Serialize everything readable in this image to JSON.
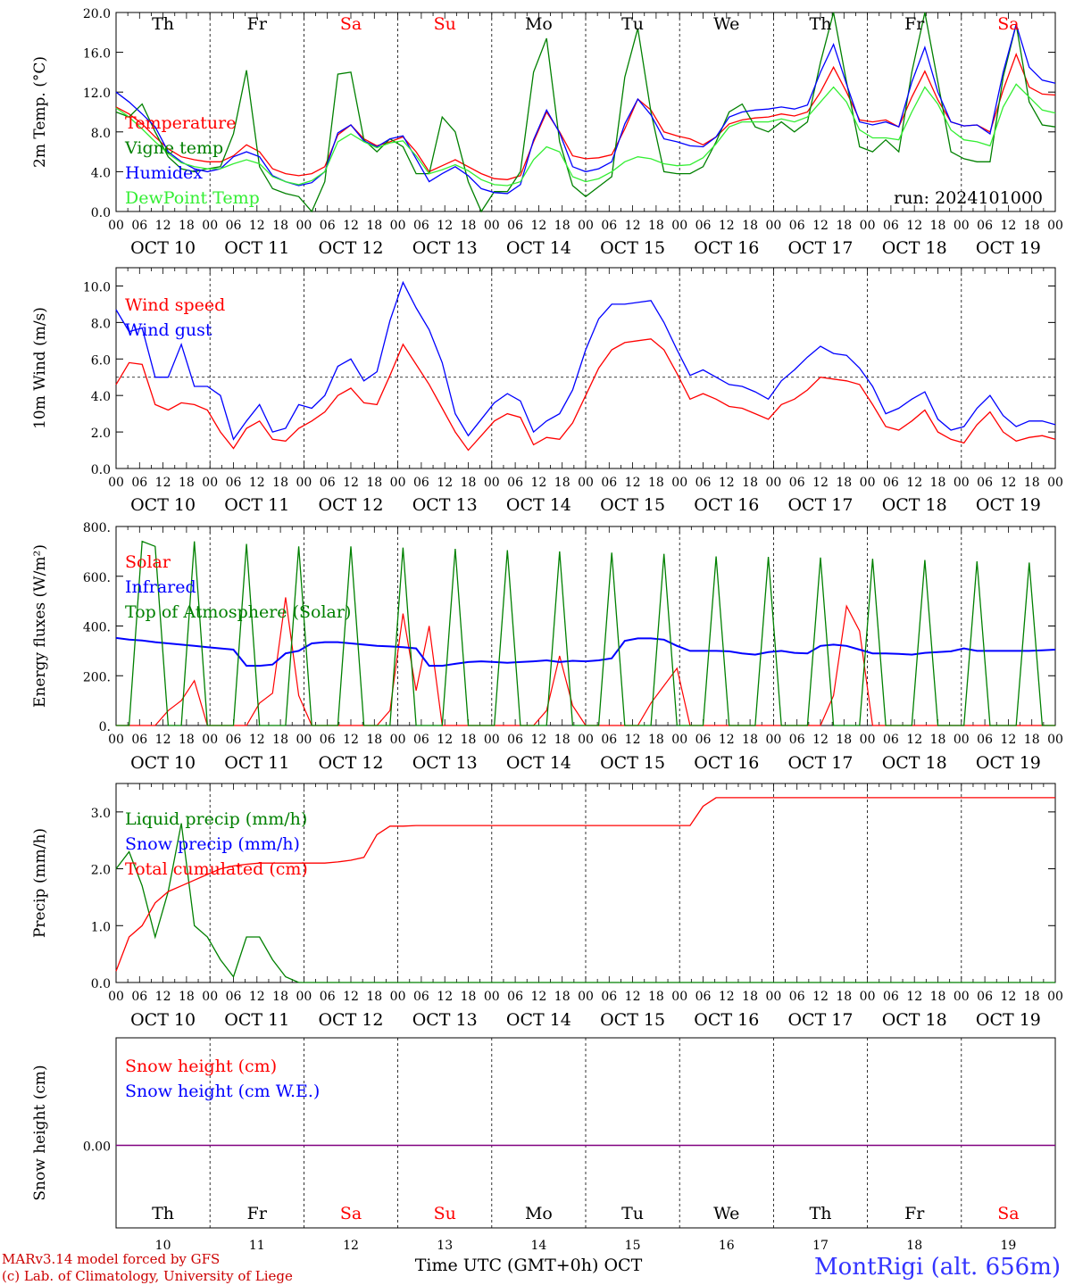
{
  "days": [
    "Th",
    "Fr",
    "Sa",
    "Su",
    "Mo",
    "Tu",
    "We",
    "Th",
    "Fr",
    "Sa"
  ],
  "weekend_days": [
    "Sa",
    "Su"
  ],
  "dates": [
    "OCT 10",
    "OCT 11",
    "OCT 12",
    "OCT 13",
    "OCT 14",
    "OCT 15",
    "OCT 16",
    "OCT 17",
    "OCT 18",
    "OCT 19"
  ],
  "day_numbers": [
    "10",
    "11",
    "12",
    "13",
    "14",
    "15",
    "16",
    "17",
    "18",
    "19"
  ],
  "hour_ticks": [
    "00",
    "06",
    "12",
    "18"
  ],
  "run_label": "run: 2024101000",
  "footer": {
    "model": "MARv3.14 model forced by GFS",
    "lab": "(c) Lab. of Climatology, University of Liege",
    "axis": "Time UTC (GMT+0h) OCT",
    "station": "MontRigi (alt. 656m)"
  },
  "colors": {
    "red": "#ff0000",
    "green": "#008000",
    "blue": "#0000ff",
    "lightgreen": "#33ee33",
    "purple": "#800080"
  },
  "chart_data": [
    {
      "type": "line",
      "ylabel": "2m Temp. (°C)",
      "ylim": [
        0,
        20
      ],
      "yticks": [
        "0.0",
        "4.0",
        "8.0",
        "12.0",
        "16.0",
        "20.0"
      ],
      "x_unit": "hours since OCT 10 00 UTC, 3-hourly",
      "series": [
        {
          "name": "Temperature",
          "color": "red",
          "values": [
            10.5,
            9.8,
            8.8,
            7.5,
            6.3,
            5.5,
            5.2,
            5.0,
            5.0,
            5.6,
            6.7,
            6.0,
            4.3,
            3.8,
            3.6,
            3.8,
            4.5,
            7.7,
            8.7,
            7.3,
            6.6,
            7.0,
            7.5,
            6.0,
            4.0,
            4.6,
            5.2,
            4.5,
            3.8,
            3.3,
            3.2,
            3.6,
            7.0,
            10.0,
            8.0,
            5.6,
            5.3,
            5.4,
            5.7,
            8.3,
            11.3,
            10.2,
            8.0,
            7.6,
            7.3,
            6.7,
            7.5,
            8.8,
            9.2,
            9.4,
            9.5,
            9.8,
            9.6,
            10.0,
            12.0,
            14.5,
            12.0,
            9.2,
            9.0,
            9.2,
            8.5,
            11.5,
            14.1,
            11.2,
            9.0,
            8.6,
            8.7,
            8.0,
            12.2,
            15.8,
            12.5,
            11.8,
            11.7
          ]
        },
        {
          "name": "Vigne temp",
          "color": "green",
          "values": [
            10.0,
            9.5,
            10.8,
            8.0,
            5.5,
            4.3,
            4.0,
            4.3,
            4.5,
            7.8,
            14.2,
            4.5,
            2.3,
            1.8,
            1.5,
            0.0,
            3.0,
            13.8,
            14.0,
            7.2,
            6.0,
            7.3,
            6.5,
            3.8,
            3.8,
            9.5,
            8.0,
            3.0,
            0.0,
            2.0,
            2.0,
            4.0,
            14.0,
            17.4,
            7.0,
            2.6,
            1.5,
            2.5,
            3.5,
            13.5,
            18.4,
            10.0,
            4.0,
            3.8,
            3.8,
            4.5,
            7.0,
            10.0,
            10.8,
            8.5,
            8.0,
            9.0,
            8.0,
            9.0,
            15.0,
            20.0,
            13.0,
            6.5,
            6.0,
            7.2,
            6.0,
            14.0,
            20.0,
            13.0,
            6.0,
            5.3,
            5.0,
            5.0,
            13.5,
            18.8,
            11.0,
            8.7,
            8.5
          ]
        },
        {
          "name": "Humidex",
          "color": "blue",
          "values": [
            12.0,
            11.0,
            9.8,
            8.5,
            6.0,
            5.0,
            4.3,
            4.0,
            4.3,
            5.5,
            6.0,
            5.5,
            3.6,
            3.0,
            2.6,
            2.9,
            4.0,
            7.9,
            8.7,
            7.1,
            6.5,
            7.3,
            7.6,
            5.3,
            3.0,
            3.8,
            4.5,
            3.6,
            2.3,
            1.9,
            1.8,
            2.7,
            7.2,
            10.2,
            7.9,
            4.5,
            4.0,
            4.3,
            5.0,
            8.8,
            11.3,
            9.7,
            7.3,
            7.0,
            6.6,
            6.5,
            7.5,
            9.5,
            10.0,
            10.2,
            10.3,
            10.5,
            10.3,
            10.7,
            14.0,
            16.8,
            12.8,
            9.0,
            8.7,
            9.0,
            8.5,
            13.0,
            16.5,
            12.0,
            9.0,
            8.6,
            8.7,
            7.8,
            14.0,
            18.8,
            14.5,
            13.2,
            12.9
          ]
        },
        {
          "name": "DewPoint Temp",
          "color": "lightgreen",
          "values": [
            10.4,
            9.5,
            8.3,
            7.0,
            5.8,
            4.9,
            4.5,
            4.3,
            4.3,
            4.8,
            5.2,
            4.8,
            3.5,
            3.0,
            2.7,
            3.1,
            4.0,
            7.0,
            7.8,
            7.0,
            6.4,
            6.9,
            7.1,
            5.6,
            3.8,
            4.2,
            4.7,
            4.1,
            3.2,
            2.7,
            2.6,
            3.0,
            5.2,
            6.5,
            6.0,
            3.5,
            3.0,
            3.3,
            4.0,
            5.0,
            5.5,
            5.3,
            4.8,
            4.6,
            4.7,
            5.4,
            6.8,
            8.5,
            9.0,
            9.0,
            9.0,
            9.3,
            9.0,
            9.5,
            11.0,
            12.5,
            11.0,
            8.2,
            7.4,
            7.4,
            7.2,
            10.0,
            12.5,
            10.8,
            8.2,
            7.2,
            7.0,
            6.6,
            10.5,
            12.8,
            11.5,
            10.2,
            9.9
          ]
        }
      ]
    },
    {
      "type": "line",
      "ylabel": "10m Wind (m/s)",
      "ylim": [
        0,
        11
      ],
      "yticks": [
        "0.0",
        "2.0",
        "4.0",
        "6.0",
        "8.0",
        "10.0"
      ],
      "reference_line": 5.0,
      "series": [
        {
          "name": "Wind speed",
          "color": "red",
          "values": [
            4.6,
            5.8,
            5.7,
            3.5,
            3.2,
            3.6,
            3.5,
            3.2,
            2.0,
            1.1,
            2.2,
            2.6,
            1.6,
            1.5,
            2.2,
            2.6,
            3.1,
            4.0,
            4.4,
            3.6,
            3.5,
            5.1,
            6.8,
            5.7,
            4.6,
            3.3,
            2.0,
            1.0,
            1.8,
            2.6,
            3.0,
            2.8,
            1.3,
            1.7,
            1.6,
            2.5,
            4.0,
            5.5,
            6.5,
            6.9,
            7.0,
            7.1,
            6.5,
            5.2,
            3.8,
            4.1,
            3.8,
            3.4,
            3.3,
            3.0,
            2.7,
            3.5,
            3.8,
            4.3,
            5.0,
            4.9,
            4.8,
            4.6,
            3.5,
            2.3,
            2.1,
            2.6,
            3.2,
            2.0,
            1.6,
            1.4,
            2.4,
            3.1,
            2.0,
            1.5,
            1.7,
            1.8,
            1.6
          ]
        },
        {
          "name": "Wind gust",
          "color": "blue",
          "values": [
            8.7,
            7.5,
            7.7,
            5.0,
            5.0,
            6.8,
            4.5,
            4.5,
            4.0,
            1.6,
            2.6,
            3.5,
            2.0,
            2.2,
            3.5,
            3.3,
            4.0,
            5.6,
            6.0,
            4.8,
            5.3,
            8.1,
            10.2,
            8.8,
            7.6,
            5.8,
            3.0,
            1.8,
            2.7,
            3.6,
            4.1,
            3.7,
            2.0,
            2.6,
            3.0,
            4.3,
            6.5,
            8.2,
            9.0,
            9.0,
            9.1,
            9.2,
            8.0,
            6.5,
            5.1,
            5.4,
            5.0,
            4.6,
            4.5,
            4.2,
            3.8,
            4.8,
            5.4,
            6.1,
            6.7,
            6.3,
            6.2,
            5.5,
            4.5,
            3.0,
            3.3,
            3.8,
            4.2,
            2.7,
            2.1,
            2.3,
            3.3,
            4.0,
            2.9,
            2.3,
            2.6,
            2.6,
            2.4
          ]
        }
      ]
    },
    {
      "type": "line",
      "ylabel": "Energy fluxes (W/m²)",
      "ylim": [
        0,
        800
      ],
      "yticks": [
        "0.",
        "200.",
        "400.",
        "600.",
        "800."
      ],
      "series": [
        {
          "name": "Solar",
          "color": "red",
          "values": [
            0,
            0,
            0,
            0,
            60,
            100,
            180,
            0,
            0,
            0,
            0,
            90,
            130,
            515,
            120,
            0,
            0,
            0,
            0,
            0,
            0,
            60,
            450,
            140,
            400,
            0,
            0,
            0,
            0,
            0,
            0,
            0,
            0,
            60,
            280,
            80,
            0,
            0,
            0,
            0,
            0,
            90,
            160,
            230,
            0,
            0,
            0,
            0,
            0,
            0,
            0,
            0,
            0,
            0,
            0,
            120,
            480,
            380,
            0,
            0,
            0,
            0,
            0,
            0,
            0,
            0,
            0,
            0,
            0,
            0,
            0,
            0,
            0
          ]
        },
        {
          "name": "Infrared",
          "color": "blue",
          "values": [
            352,
            345,
            342,
            335,
            330,
            325,
            320,
            315,
            310,
            305,
            240,
            240,
            245,
            290,
            300,
            330,
            335,
            335,
            330,
            325,
            320,
            318,
            315,
            310,
            240,
            240,
            248,
            255,
            258,
            255,
            252,
            255,
            258,
            262,
            255,
            260,
            258,
            262,
            270,
            340,
            350,
            350,
            345,
            320,
            300,
            300,
            300,
            298,
            290,
            285,
            295,
            300,
            292,
            290,
            320,
            325,
            320,
            305,
            290,
            290,
            288,
            285,
            292,
            295,
            298,
            310,
            300,
            300,
            300,
            300,
            300,
            302,
            305
          ]
        },
        {
          "name": "Top of Atmosphere (Solar)",
          "color": "green",
          "values": [
            0,
            0,
            740,
            720,
            0,
            0,
            740,
            0,
            0,
            0,
            730,
            0,
            0,
            0,
            720,
            0,
            0,
            0,
            720,
            0,
            0,
            0,
            715,
            0,
            0,
            0,
            710,
            0,
            0,
            0,
            705,
            0,
            0,
            0,
            700,
            0,
            0,
            0,
            695,
            0,
            0,
            0,
            690,
            0,
            0,
            0,
            680,
            0,
            0,
            0,
            678,
            0,
            0,
            0,
            675,
            0,
            0,
            0,
            670,
            0,
            0,
            0,
            665,
            0,
            0,
            0,
            660,
            0,
            0,
            0,
            655,
            0,
            0
          ]
        },
        {
          "name": "",
          "color": "green",
          "values": []
        }
      ]
    },
    {
      "type": "line",
      "ylabel": "Precip (mm/h)",
      "ylim": [
        0,
        3.5
      ],
      "yticks": [
        "0.0",
        "1.0",
        "2.0",
        "3.0"
      ],
      "series": [
        {
          "name": "Liquid precip (mm/h)",
          "color": "green",
          "values": [
            2.0,
            2.3,
            1.7,
            0.8,
            1.6,
            2.8,
            1.0,
            0.8,
            0.4,
            0.1,
            0.8,
            0.8,
            0.4,
            0.1,
            0.0,
            0.0,
            0.0,
            0.0,
            0.0,
            0.0,
            0.0,
            0.0,
            0.0,
            0.0,
            0.0,
            0.0,
            0.0,
            0.0,
            0.0,
            0.0,
            0.0,
            0.0,
            0.0,
            0.0,
            0.0,
            0.0,
            0.0,
            0.0,
            0.0,
            0.0,
            0.0,
            0.0,
            0.0,
            0.0,
            0.0,
            0.0,
            0.0,
            0.0,
            0.0,
            0.0,
            0.0,
            0.0,
            0.0,
            0.0,
            0.0,
            0.0,
            0.0,
            0.0,
            0.0,
            0.0,
            0.0,
            0.0,
            0.0,
            0.0,
            0.0,
            0.0,
            0.0,
            0.0,
            0.0,
            0.0,
            0.0,
            0.0,
            0.0
          ]
        },
        {
          "name": "Snow precip (mm/h)",
          "color": "blue",
          "values": []
        },
        {
          "name": "Total cumulated (cm)",
          "color": "red",
          "values": [
            0.2,
            0.8,
            1.0,
            1.4,
            1.6,
            1.7,
            1.8,
            1.9,
            2.0,
            2.05,
            2.08,
            2.1,
            2.1,
            2.1,
            2.1,
            2.1,
            2.1,
            2.12,
            2.15,
            2.2,
            2.6,
            2.75,
            2.75,
            2.76,
            2.76,
            2.76,
            2.76,
            2.76,
            2.76,
            2.76,
            2.76,
            2.76,
            2.76,
            2.76,
            2.76,
            2.76,
            2.76,
            2.76,
            2.76,
            2.76,
            2.76,
            2.76,
            2.76,
            2.76,
            2.76,
            3.1,
            3.25,
            3.25,
            3.25,
            3.25,
            3.25,
            3.25,
            3.25,
            3.25,
            3.25,
            3.25,
            3.25,
            3.25,
            3.25,
            3.25,
            3.25,
            3.25,
            3.25,
            3.25,
            3.25,
            3.25,
            3.25,
            3.25,
            3.25,
            3.25,
            3.25,
            3.25,
            3.25
          ]
        }
      ]
    },
    {
      "type": "line",
      "ylabel": "Snow height (cm)",
      "yticks": [
        "0.00"
      ],
      "series": [
        {
          "name": "Snow height (cm)",
          "color": "red",
          "values": [
            0,
            0
          ]
        },
        {
          "name": "Snow height (cm W.E.)",
          "color": "blue",
          "values": [
            0,
            0
          ]
        }
      ]
    }
  ]
}
